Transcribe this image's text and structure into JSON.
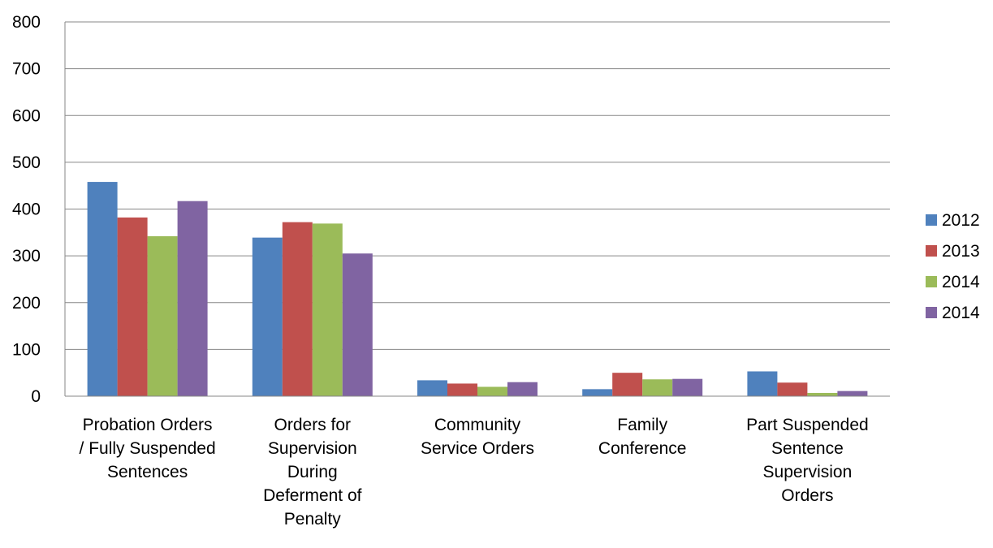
{
  "chart_data": {
    "type": "bar",
    "categories": [
      "Probation Orders / Fully Suspended Sentences",
      "Orders for Supervision During Deferment of Penalty",
      "Community Service Orders",
      "Family Conference",
      "Part Suspended Sentence Supervision Orders"
    ],
    "category_lines": [
      [
        "Probation Orders",
        "/ Fully Suspended",
        "Sentences"
      ],
      [
        "Orders for",
        "Supervision",
        "During",
        "Deferment of",
        "Penalty"
      ],
      [
        "Community",
        "Service Orders"
      ],
      [
        "Family",
        "Conference"
      ],
      [
        "Part Suspended",
        "Sentence",
        "Supervision",
        "Orders"
      ]
    ],
    "series": [
      {
        "name": "2012",
        "color": "#4f81bd",
        "values": [
          458,
          339,
          34,
          15,
          53
        ]
      },
      {
        "name": "2013",
        "color": "#c0504d",
        "values": [
          382,
          372,
          27,
          50,
          29
        ]
      },
      {
        "name": "2014",
        "color": "#9bbb59",
        "values": [
          342,
          369,
          20,
          36,
          7
        ]
      },
      {
        "name": "2014",
        "color": "#8064a2",
        "values": [
          417,
          305,
          30,
          37,
          11
        ]
      }
    ],
    "yticks": [
      "0",
      "100",
      "200",
      "300",
      "400",
      "500",
      "600",
      "700",
      "800"
    ],
    "ylim": [
      0,
      800
    ],
    "grid": true,
    "legend_position": "right",
    "title": "",
    "xlabel": "",
    "ylabel": ""
  }
}
